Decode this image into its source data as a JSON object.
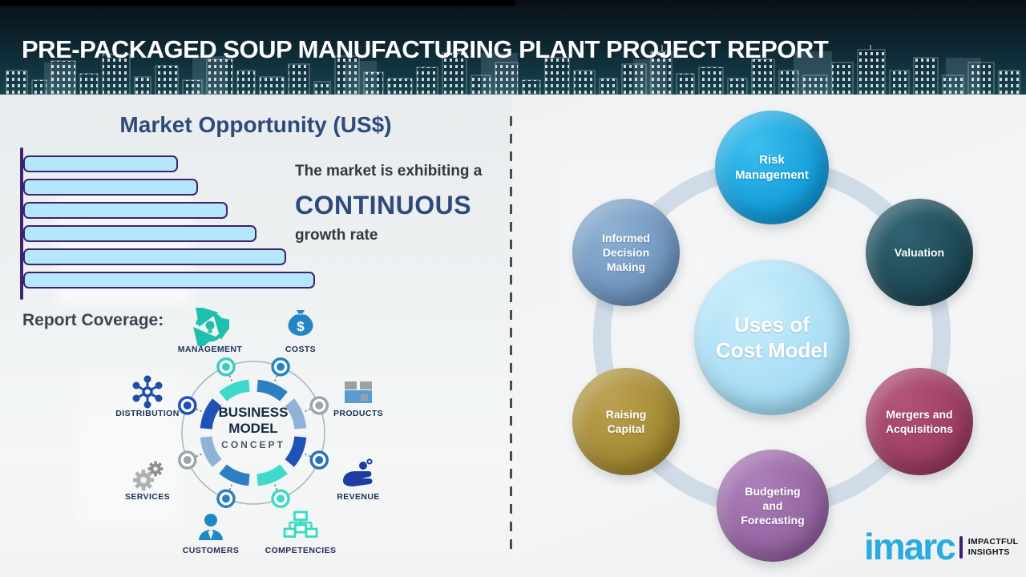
{
  "header": {
    "title": "PRE-PACKAGED SOUP MANUFACTURING PLANT PROJECT REPORT"
  },
  "left_panel": {
    "section_title": "Market Opportunity (US$)",
    "growth_text": {
      "prefix": "The market is exhibiting a",
      "highlight": "CONTINUOUS",
      "suffix": "growth rate"
    },
    "report_coverage_label": "Report Coverage:",
    "business_model": {
      "center_line1": "BUSINESS",
      "center_line2": "MODEL",
      "center_line3": "CONCEPT",
      "items": [
        {
          "label": "MANAGEMENT",
          "icon": "management-cycle-bulb-icon",
          "color": "#1fbfae"
        },
        {
          "label": "COSTS",
          "icon": "money-bag-icon",
          "color": "#2584c6"
        },
        {
          "label": "DISTRIBUTION",
          "icon": "network-hub-icon",
          "color": "#1e4fa5"
        },
        {
          "label": "PRODUCTS",
          "icon": "product-box-icon",
          "color": "#5b9bd5"
        },
        {
          "label": "SERVICES",
          "icon": "gears-icon",
          "color": "#9e9e9e"
        },
        {
          "label": "REVENUE",
          "icon": "hand-coins-icon",
          "color": "#1d3ea0"
        },
        {
          "label": "CUSTOMERS",
          "icon": "person-icon",
          "color": "#1f87c2"
        },
        {
          "label": "COMPETENCIES",
          "icon": "org-chart-icon",
          "color": "#35dcc3"
        }
      ]
    }
  },
  "chart_data": {
    "type": "bar",
    "orientation": "horizontal",
    "title": "Market Opportunity (US$)",
    "categories": [
      "",
      "",
      "",
      "",
      "",
      ""
    ],
    "values": [
      53,
      60,
      70,
      80,
      90,
      100
    ],
    "note": "Six unlabeled bars of steadily increasing length illustrating continuous growth; values are relative percentages of the longest bar",
    "annotation": "The market is exhibiting a CONTINUOUS growth rate",
    "bar_color": "#b5e7fb",
    "bar_border_color": "#3b2370",
    "axis_color": "#3f2373"
  },
  "right_panel": {
    "center_circle": {
      "label": "Uses of\nCost Model",
      "color": "#a6dcf5"
    },
    "circles": [
      {
        "label": "Risk\nManagement",
        "color": "#189fdc"
      },
      {
        "label": "Valuation",
        "color": "#1d4753"
      },
      {
        "label": "Informed\nDecision\nMaking",
        "color": "#6f94bf"
      },
      {
        "label": "Raising\nCapital",
        "color": "#a88d3f"
      },
      {
        "label": "Mergers and\nAcquisitions",
        "color": "#a34268"
      },
      {
        "label": "Budgeting\nand\nForecasting",
        "color": "#9a6ba6"
      }
    ],
    "ring_color": "#cfdbe6"
  },
  "logo": {
    "brand": "imarc",
    "tagline_line1": "IMPACTFUL",
    "tagline_line2": "INSIGHTS",
    "brand_color": "#29abe2"
  }
}
